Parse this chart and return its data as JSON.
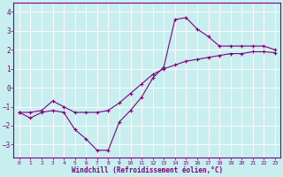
{
  "xlabel": "Windchill (Refroidissement éolien,°C)",
  "background_color": "#c8eef0",
  "line_color": "#800080",
  "grid_color": "#ffffff",
  "xlim": [
    -0.5,
    23.5
  ],
  "ylim": [
    -3.7,
    4.5
  ],
  "xticks": [
    0,
    1,
    2,
    3,
    4,
    5,
    6,
    7,
    8,
    9,
    10,
    11,
    12,
    13,
    14,
    15,
    16,
    17,
    18,
    19,
    20,
    21,
    22,
    23
  ],
  "yticks": [
    -3,
    -2,
    -1,
    0,
    1,
    2,
    3,
    4
  ],
  "line1_x": [
    0,
    1,
    2,
    3,
    4,
    5,
    6,
    7,
    8,
    9,
    10,
    11,
    12,
    13,
    14,
    15,
    16,
    17,
    18,
    19,
    20,
    21,
    22,
    23
  ],
  "line1_y": [
    -1.3,
    -1.6,
    -1.3,
    -1.2,
    -1.3,
    -2.2,
    -2.7,
    -3.3,
    -3.3,
    -1.8,
    -1.2,
    -0.5,
    0.5,
    1.1,
    3.6,
    3.7,
    3.1,
    2.7,
    2.2,
    2.2,
    2.2,
    2.2,
    2.2,
    2.0
  ],
  "line2_x": [
    0,
    1,
    2,
    3,
    4,
    5,
    6,
    7,
    8,
    9,
    10,
    11,
    12,
    13,
    14,
    15,
    16,
    17,
    18,
    19,
    20,
    21,
    22,
    23
  ],
  "line2_y": [
    -1.3,
    -1.3,
    -1.2,
    -0.7,
    -1.0,
    -1.3,
    -1.3,
    -1.3,
    -1.2,
    -0.8,
    -0.3,
    0.2,
    0.7,
    1.0,
    1.2,
    1.4,
    1.5,
    1.6,
    1.7,
    1.8,
    1.8,
    1.9,
    1.9,
    1.85
  ]
}
